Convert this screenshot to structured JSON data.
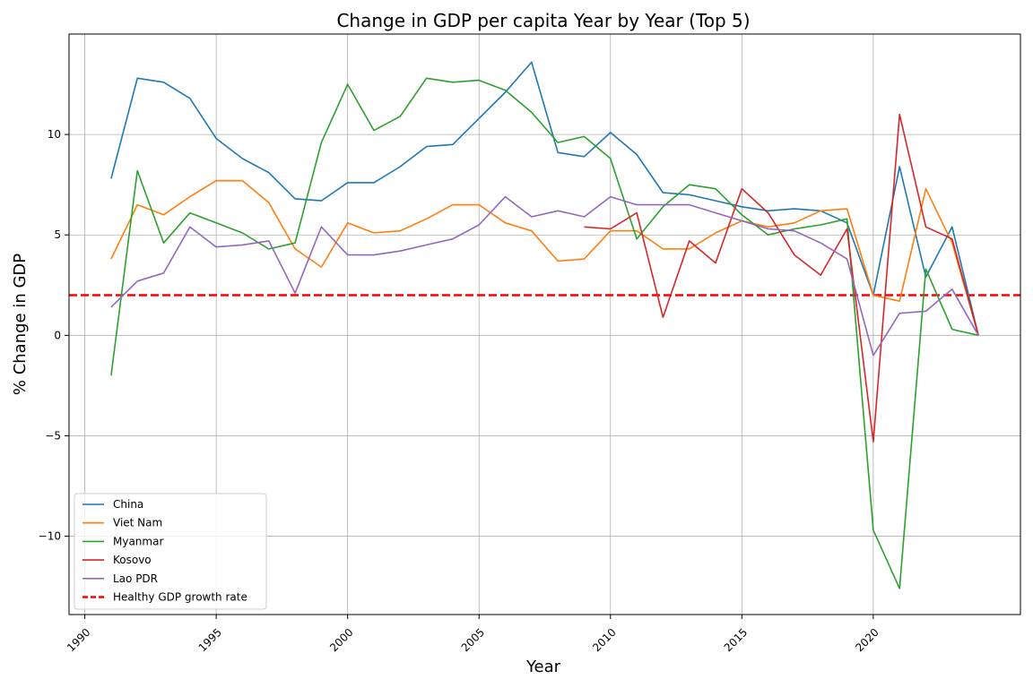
{
  "chart_data": {
    "type": "line",
    "title": "Change in GDP per capita Year by Year (Top 5)",
    "xlabel": "Year",
    "ylabel": "% Change in GDP",
    "xlim": [
      1989.4,
      2025.6
    ],
    "ylim": [
      -13.9,
      15.0
    ],
    "x_ticks": [
      1990,
      1995,
      2000,
      2005,
      2010,
      2015,
      2020
    ],
    "x_tick_labels": [
      "1990",
      "1995",
      "2000",
      "2005",
      "2010",
      "2015",
      "2020"
    ],
    "y_ticks": [
      -10,
      -5,
      0,
      5,
      10
    ],
    "y_tick_labels": [
      "−10",
      "−5",
      "0",
      "5",
      "10"
    ],
    "grid": true,
    "legend_position": "lower-left",
    "x": [
      1991,
      1992,
      1993,
      1994,
      1995,
      1996,
      1997,
      1998,
      1999,
      2000,
      2001,
      2002,
      2003,
      2004,
      2005,
      2006,
      2007,
      2008,
      2009,
      2010,
      2011,
      2012,
      2013,
      2014,
      2015,
      2016,
      2017,
      2018,
      2019,
      2020,
      2021,
      2022,
      2023,
      2024
    ],
    "series": [
      {
        "name": "China",
        "color": "#1f77b4",
        "values": [
          7.8,
          12.8,
          12.6,
          11.8,
          9.8,
          8.8,
          8.1,
          6.8,
          6.7,
          7.6,
          7.6,
          8.4,
          9.4,
          9.5,
          10.8,
          12.1,
          13.6,
          9.1,
          8.9,
          10.1,
          9.0,
          7.1,
          7.0,
          6.7,
          6.4,
          6.2,
          6.3,
          6.2,
          5.6,
          2.0,
          8.4,
          2.9,
          5.4,
          0.0
        ]
      },
      {
        "name": "Viet Nam",
        "color": "#ff7f0e",
        "values": [
          3.8,
          6.5,
          6.0,
          6.9,
          7.7,
          7.7,
          6.6,
          4.3,
          3.4,
          5.6,
          5.1,
          5.2,
          5.8,
          6.5,
          6.5,
          5.6,
          5.2,
          3.7,
          3.8,
          5.2,
          5.2,
          4.3,
          4.3,
          5.1,
          5.7,
          5.4,
          5.6,
          6.2,
          6.3,
          2.0,
          1.7,
          7.3,
          4.6,
          0.0
        ]
      },
      {
        "name": "Myanmar",
        "color": "#2ca02c",
        "values": [
          -2.0,
          8.2,
          4.6,
          6.1,
          5.6,
          5.1,
          4.3,
          4.6,
          9.6,
          12.5,
          10.2,
          10.9,
          12.8,
          12.6,
          12.7,
          12.2,
          11.1,
          9.6,
          9.9,
          8.8,
          4.8,
          6.4,
          7.5,
          7.3,
          6.0,
          5.0,
          5.3,
          5.5,
          5.8,
          -9.7,
          -12.6,
          3.3,
          0.3,
          0.0
        ]
      },
      {
        "name": "Kosovo",
        "color": "#d62728",
        "values": [
          null,
          null,
          null,
          null,
          null,
          null,
          null,
          null,
          null,
          null,
          null,
          null,
          null,
          null,
          null,
          null,
          null,
          null,
          5.4,
          5.3,
          6.1,
          0.9,
          4.7,
          3.6,
          7.3,
          6.1,
          4.0,
          3.0,
          5.3,
          -5.3,
          11.0,
          5.4,
          4.8,
          0.0
        ]
      },
      {
        "name": "Lao PDR",
        "color": "#9467bd",
        "values": [
          1.4,
          2.7,
          3.1,
          5.4,
          4.4,
          4.5,
          4.7,
          2.1,
          5.4,
          4.0,
          4.0,
          4.2,
          4.5,
          4.8,
          5.5,
          6.9,
          5.9,
          6.2,
          5.9,
          6.9,
          6.5,
          6.5,
          6.5,
          6.1,
          5.7,
          5.3,
          5.2,
          4.6,
          3.8,
          -1.0,
          1.1,
          1.2,
          2.3,
          0.0
        ]
      }
    ],
    "reference_line": {
      "name": "Healthy GDP growth rate",
      "value": 2.0,
      "color": "#ff0000"
    }
  }
}
